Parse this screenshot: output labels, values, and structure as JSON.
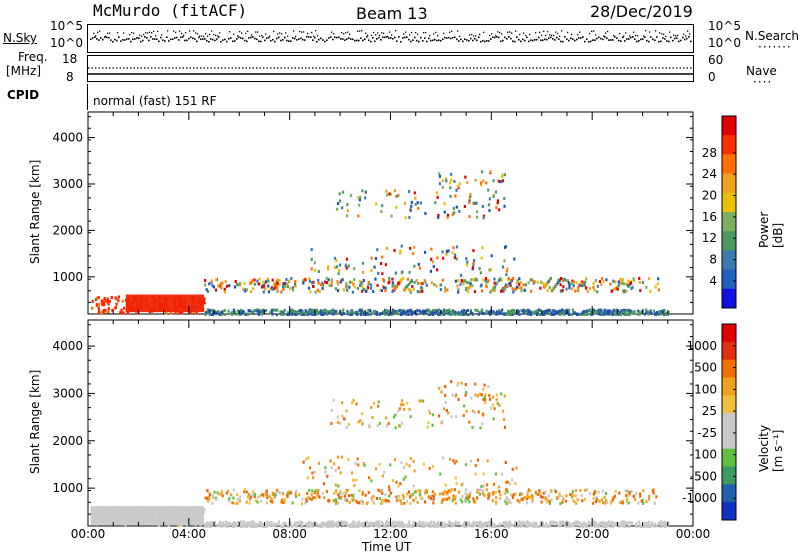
{
  "header": {
    "station": "McMurdo (fitACF)",
    "beam": "Beam 13",
    "date": "28/Dec/2019"
  },
  "status_panels": {
    "nsky_label": "N.Sky",
    "nsearch_label": "N.Search",
    "nsky_tick_high": "10^5",
    "nsky_tick_low": "10^0",
    "nsearch_tick_high": "10^5",
    "nsearch_tick_low": "10^0",
    "freq_label_1": "Freq.",
    "freq_label_2": "[MHz]",
    "freq_tick_high": "18",
    "freq_tick_low": "8",
    "nave_label": "Nave",
    "nave_tick_high": "60",
    "nave_tick_low": "0",
    "cpid_label": "CPID",
    "cpid_value": "normal (fast) 151 RF"
  },
  "chart_data": [
    {
      "type": "heatmap",
      "panel": "power",
      "ylabel": "Slant Range [km]",
      "xlabel": "Time UT",
      "y_ticks": [
        1000,
        2000,
        3000,
        4000
      ],
      "x_ticks": [
        "00:00",
        "04:00",
        "08:00",
        "12:00",
        "16:00",
        "20:00",
        "00:00"
      ],
      "ylim": [
        200,
        4550
      ],
      "xlim_hours": [
        0,
        24
      ],
      "colorbar_label": "Power [dB]",
      "colorbar_ticks": [
        "4",
        "8",
        "12",
        "16",
        "20",
        "24",
        "28"
      ],
      "colorbar_colors": [
        "#1010e0",
        "#2060c0",
        "#3a7ab0",
        "#4a9a60",
        "#7ab060",
        "#e8c000",
        "#f0a020",
        "#ff7000",
        "#ff3000",
        "#e00000"
      ]
    },
    {
      "type": "heatmap",
      "panel": "velocity",
      "ylabel": "Slant Range [km]",
      "xlabel": "Time UT",
      "y_ticks": [
        1000,
        2000,
        3000,
        4000
      ],
      "x_ticks": [
        "00:00",
        "04:00",
        "08:00",
        "12:00",
        "16:00",
        "20:00",
        "00:00"
      ],
      "ylim": [
        200,
        4550
      ],
      "xlim_hours": [
        0,
        24
      ],
      "colorbar_label": "Velocity [m s⁻¹]",
      "colorbar_ticks": [
        "1000",
        "500",
        "100",
        "25",
        "-25",
        "-100",
        "-500",
        "-1000"
      ],
      "colorbar_colors": [
        "#1030c0",
        "#2060b0",
        "#3a9a60",
        "#60c040",
        "#c8c8c8",
        "#c8c8c8",
        "#f0c040",
        "#f0a020",
        "#f07000",
        "#e03010",
        "#e00000"
      ]
    }
  ]
}
